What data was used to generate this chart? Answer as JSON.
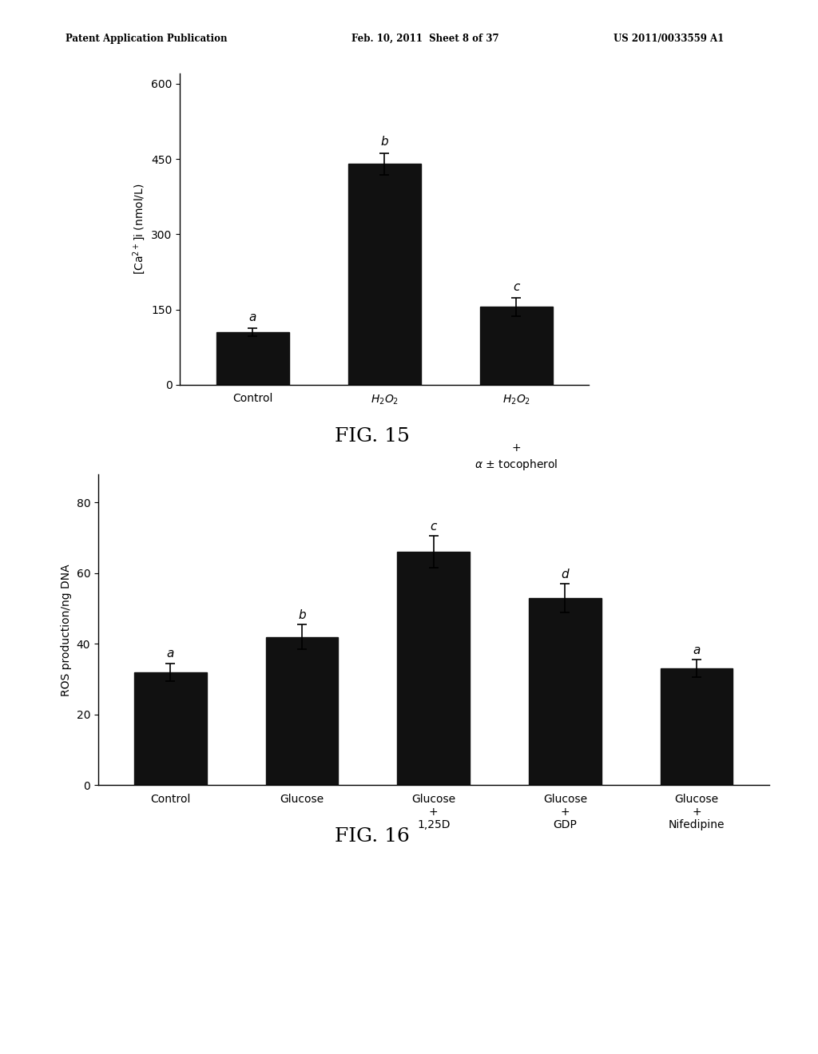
{
  "fig15": {
    "values": [
      105,
      440,
      155
    ],
    "errors": [
      8,
      22,
      18
    ],
    "labels": [
      "a",
      "b",
      "c"
    ],
    "ylabel": "[Ca$^{2+}$]i (nmol/L)",
    "ylim": [
      0,
      620
    ],
    "yticks": [
      0,
      150,
      300,
      450,
      600
    ],
    "bar_color": "#111111",
    "bar_width": 0.55,
    "figname": "FIG. 15"
  },
  "fig16": {
    "values": [
      32,
      42,
      66,
      53,
      33
    ],
    "errors": [
      2.5,
      3.5,
      4.5,
      4.0,
      2.5
    ],
    "labels": [
      "a",
      "b",
      "c",
      "d",
      "a"
    ],
    "ylabel": "ROS production/ng DNA",
    "ylim": [
      0,
      88
    ],
    "yticks": [
      0,
      20,
      40,
      60,
      80
    ],
    "bar_color": "#111111",
    "bar_width": 0.55,
    "figname": "FIG. 16"
  },
  "header_left": "Patent Application Publication",
  "header_mid": "Feb. 10, 2011  Sheet 8 of 37",
  "header_right": "US 2011/0033559 A1",
  "background_color": "#ffffff",
  "text_color": "#000000"
}
